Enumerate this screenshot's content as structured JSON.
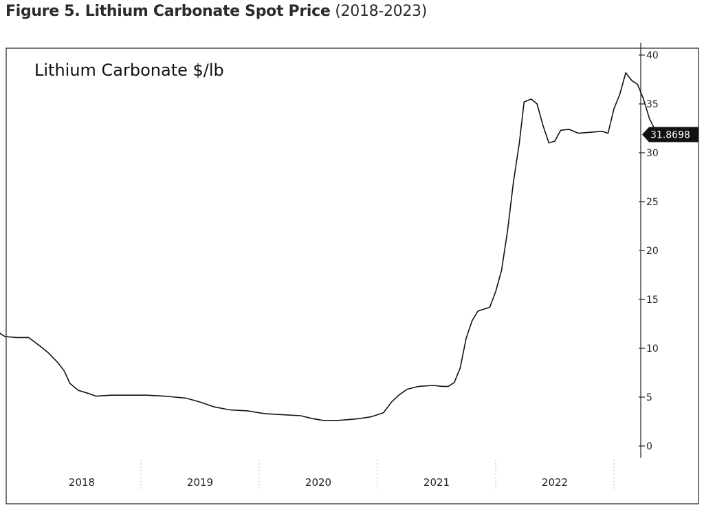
{
  "figure": {
    "title_bold": "Figure 5. Lithium Carbonate Spot Price",
    "title_rest": "(2018-2023)"
  },
  "chart_data": {
    "type": "line",
    "series_label": "Lithium Carbonate  $/lb",
    "ylim": [
      0,
      40
    ],
    "y_ticks": [
      "0",
      "5",
      "10",
      "15",
      "20",
      "25",
      "30",
      "35",
      "40"
    ],
    "x_ticks": [
      "2018",
      "2019",
      "2020",
      "2021",
      "2022"
    ],
    "last_value_label": "31.8698",
    "grid": false,
    "line_color": "#111111",
    "series": [
      {
        "values": [
          [
            2017.3,
            11.6
          ],
          [
            2017.35,
            11.2
          ],
          [
            2017.45,
            11.1
          ],
          [
            2017.55,
            11.1
          ],
          [
            2017.65,
            10.2
          ],
          [
            2017.72,
            9.5
          ],
          [
            2017.8,
            8.5
          ],
          [
            2017.85,
            7.7
          ],
          [
            2017.9,
            6.4
          ],
          [
            2017.97,
            5.7
          ],
          [
            2018.05,
            5.4
          ],
          [
            2018.12,
            5.1
          ],
          [
            2018.25,
            5.2
          ],
          [
            2018.4,
            5.2
          ],
          [
            2018.55,
            5.2
          ],
          [
            2018.7,
            5.1
          ],
          [
            2018.88,
            4.9
          ],
          [
            2019.0,
            4.5
          ],
          [
            2019.12,
            4.0
          ],
          [
            2019.25,
            3.7
          ],
          [
            2019.4,
            3.6
          ],
          [
            2019.55,
            3.3
          ],
          [
            2019.7,
            3.2
          ],
          [
            2019.85,
            3.1
          ],
          [
            2019.95,
            2.8
          ],
          [
            2020.05,
            2.6
          ],
          [
            2020.15,
            2.6
          ],
          [
            2020.25,
            2.7
          ],
          [
            2020.35,
            2.8
          ],
          [
            2020.45,
            3.0
          ],
          [
            2020.55,
            3.4
          ],
          [
            2020.62,
            4.5
          ],
          [
            2020.68,
            5.2
          ],
          [
            2020.75,
            5.8
          ],
          [
            2020.85,
            6.1
          ],
          [
            2020.97,
            6.2
          ],
          [
            2021.05,
            6.1
          ],
          [
            2021.1,
            6.1
          ],
          [
            2021.15,
            6.5
          ],
          [
            2021.2,
            8.0
          ],
          [
            2021.25,
            11.0
          ],
          [
            2021.3,
            12.8
          ],
          [
            2021.35,
            13.8
          ],
          [
            2021.45,
            14.2
          ],
          [
            2021.5,
            15.8
          ],
          [
            2021.55,
            18.0
          ],
          [
            2021.6,
            22.0
          ],
          [
            2021.65,
            27.0
          ],
          [
            2021.7,
            31.0
          ],
          [
            2021.74,
            35.2
          ],
          [
            2021.8,
            35.5
          ],
          [
            2021.85,
            35.0
          ],
          [
            2021.9,
            32.8
          ],
          [
            2021.95,
            31.0
          ],
          [
            2022.0,
            31.2
          ],
          [
            2022.05,
            32.3
          ],
          [
            2022.12,
            32.4
          ],
          [
            2022.2,
            32.0
          ],
          [
            2022.3,
            32.1
          ],
          [
            2022.4,
            32.2
          ],
          [
            2022.45,
            32.0
          ],
          [
            2022.5,
            34.5
          ],
          [
            2022.55,
            36.0
          ],
          [
            2022.6,
            38.2
          ],
          [
            2022.65,
            37.4
          ],
          [
            2022.7,
            37.0
          ],
          [
            2022.75,
            35.5
          ],
          [
            2022.8,
            33.5
          ],
          [
            2022.85,
            32.3
          ],
          [
            2022.88,
            31.87
          ]
        ]
      }
    ]
  }
}
